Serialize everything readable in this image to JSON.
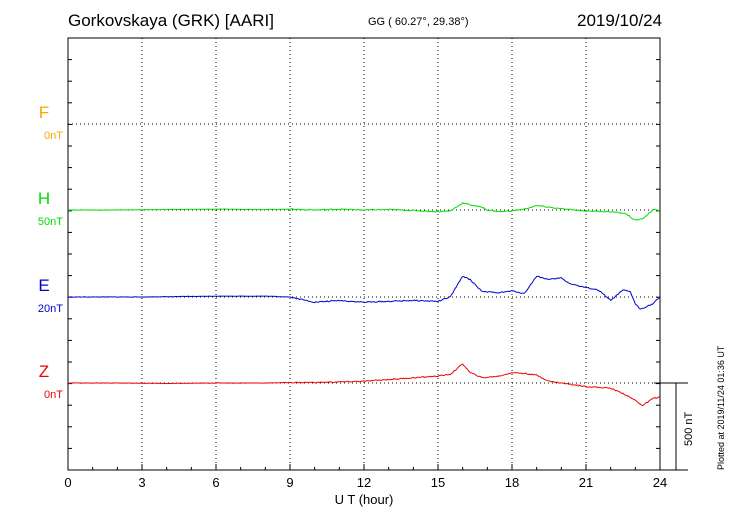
{
  "header": {
    "station": "Gorkovskaya (GRK)  [AARI]",
    "coordinates": "GG ( 60.27°,  29.38°)",
    "date": "2019/10/24"
  },
  "footer": {
    "plotted": "Plotted at 2019/11/24 01:36 UT"
  },
  "scale_bar_label": "500 nT",
  "chart_data": {
    "type": "line",
    "title": "",
    "xlabel": "U T (hour)",
    "xlim": [
      0,
      24
    ],
    "x_ticks": [
      "0",
      "3",
      "6",
      "9",
      "12",
      "15",
      "18",
      "21",
      "24"
    ],
    "grid": true,
    "series": [
      {
        "name": "F",
        "baseline": "0nT",
        "color": "#ffa500",
        "x": [],
        "y": []
      },
      {
        "name": "H",
        "baseline": "50nT",
        "color": "#00dd00",
        "x": [
          0,
          2,
          4,
          6,
          8,
          9,
          10,
          11,
          12,
          13,
          14,
          15,
          15.5,
          16,
          16.3,
          16.8,
          17,
          17.5,
          18,
          18.5,
          19,
          19.3,
          19.8,
          20.5,
          21,
          22,
          22.6,
          23,
          23.3,
          23.7,
          24
        ],
        "y": [
          0,
          0,
          3,
          5,
          3,
          5,
          0,
          5,
          0,
          3,
          -3,
          -10,
          -5,
          40,
          30,
          15,
          0,
          -10,
          -5,
          5,
          25,
          20,
          10,
          0,
          -5,
          -10,
          -20,
          -60,
          -50,
          0,
          0
        ]
      },
      {
        "name": "E",
        "baseline": "20nT",
        "color": "#0000cc",
        "x": [
          0,
          3,
          6,
          8,
          9,
          10,
          11,
          12,
          13,
          14,
          15,
          15.5,
          16,
          16.3,
          16.8,
          17.5,
          18,
          18.5,
          19,
          19.5,
          20,
          20.3,
          20.8,
          21.5,
          22,
          22.5,
          22.8,
          23,
          23.2,
          23.7,
          24
        ],
        "y": [
          0,
          0,
          5,
          5,
          0,
          -30,
          -20,
          -30,
          -25,
          -20,
          -25,
          0,
          120,
          100,
          30,
          25,
          35,
          20,
          120,
          100,
          110,
          80,
          60,
          40,
          -20,
          40,
          30,
          -40,
          -70,
          -40,
          0
        ]
      },
      {
        "name": "Z",
        "baseline": "0nT",
        "color": "#ee0000",
        "x": [
          0,
          2,
          4,
          6,
          8,
          9,
          10,
          11,
          12,
          13,
          14,
          15,
          15.5,
          16,
          16.3,
          16.8,
          17.5,
          18,
          18.5,
          19,
          19.5,
          20,
          21,
          22,
          22.5,
          23,
          23.3,
          23.7,
          24
        ],
        "y": [
          0,
          0,
          -3,
          0,
          0,
          3,
          3,
          6,
          10,
          20,
          30,
          40,
          50,
          110,
          60,
          30,
          40,
          60,
          55,
          45,
          10,
          0,
          -20,
          -30,
          -60,
          -100,
          -130,
          -90,
          -80
        ]
      }
    ]
  }
}
